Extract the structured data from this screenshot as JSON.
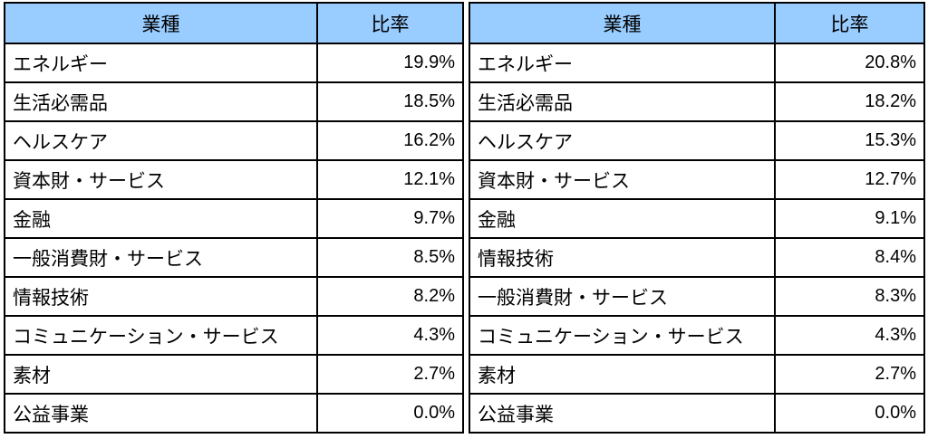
{
  "tables": [
    {
      "header": {
        "sector": "業種",
        "ratio": "比率"
      },
      "rows": [
        {
          "sector": "エネルギー",
          "ratio": "19.9%"
        },
        {
          "sector": "生活必需品",
          "ratio": "18.5%"
        },
        {
          "sector": "ヘルスケア",
          "ratio": "16.2%"
        },
        {
          "sector": "資本財・サービス",
          "ratio": "12.1%"
        },
        {
          "sector": "金融",
          "ratio": "9.7%"
        },
        {
          "sector": "一般消費財・サービス",
          "ratio": "8.5%"
        },
        {
          "sector": "情報技術",
          "ratio": "8.2%"
        },
        {
          "sector": "コミュニケーション・サービス",
          "ratio": "4.3%"
        },
        {
          "sector": "素材",
          "ratio": "2.7%"
        },
        {
          "sector": "公益事業",
          "ratio": "0.0%"
        }
      ]
    },
    {
      "header": {
        "sector": "業種",
        "ratio": "比率"
      },
      "rows": [
        {
          "sector": "エネルギー",
          "ratio": "20.8%"
        },
        {
          "sector": "生活必需品",
          "ratio": "18.2%"
        },
        {
          "sector": "ヘルスケア",
          "ratio": "15.3%"
        },
        {
          "sector": "資本財・サービス",
          "ratio": "12.7%"
        },
        {
          "sector": "金融",
          "ratio": "9.1%"
        },
        {
          "sector": "情報技術",
          "ratio": "8.4%"
        },
        {
          "sector": "一般消費財・サービス",
          "ratio": "8.3%"
        },
        {
          "sector": "コミュニケーション・サービス",
          "ratio": "4.3%"
        },
        {
          "sector": "素材",
          "ratio": "2.7%"
        },
        {
          "sector": "公益事業",
          "ratio": "0.0%"
        }
      ]
    }
  ],
  "colors": {
    "header_bg": "#99ccff",
    "border": "#000000"
  }
}
